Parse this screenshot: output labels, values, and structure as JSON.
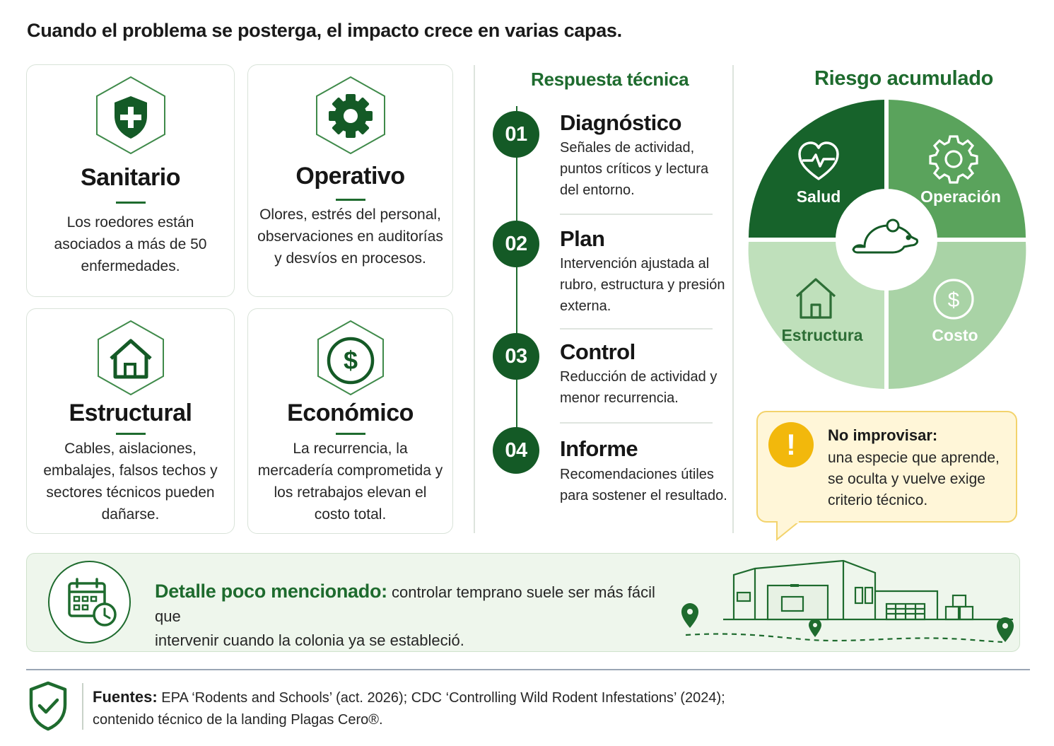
{
  "headline": "Cuando el problema se posterga, el impacto crece en varias capas.",
  "impacts": [
    {
      "title": "Sanitario",
      "icon": "shield-plus-icon",
      "desc": "Los roedores están asociados a más de 50 enfermedades."
    },
    {
      "title": "Operativo",
      "icon": "gear-icon",
      "desc": "Olores, estrés del personal, observaciones en auditorías y desvíos en procesos."
    },
    {
      "title": "Estructural",
      "icon": "house-icon",
      "desc": "Cables, aislaciones, embalajes, falsos techos y sectores técnicos pueden dañarse."
    },
    {
      "title": "Económico",
      "icon": "dollar-coin-icon",
      "desc": "La recurrencia, la mercadería comprometida y los retrabajos elevan el costo total."
    }
  ],
  "response": {
    "title": "Respuesta técnica",
    "steps": [
      {
        "num": "01",
        "title": "Diagnóstico",
        "desc": "Señales de actividad, puntos críticos y lectura del entorno."
      },
      {
        "num": "02",
        "title": "Plan",
        "desc": "Intervención ajustada al rubro, estructura y presión externa."
      },
      {
        "num": "03",
        "title": "Control",
        "desc": "Reducción de actividad y menor recurrencia."
      },
      {
        "num": "04",
        "title": "Informe",
        "desc": "Recomendaciones útiles para sostener el resultado."
      }
    ]
  },
  "risk": {
    "title": "Riesgo acumulado",
    "center_icon": "rodent-icon",
    "segments": [
      {
        "label": "Salud",
        "icon": "heart-pulse-icon",
        "color": "#17632b"
      },
      {
        "label": "Operación",
        "icon": "gear-icon",
        "color": "#5aa35c"
      },
      {
        "label": "Estructura",
        "icon": "house-icon",
        "color": "#bfe0bb"
      },
      {
        "label": "Costo",
        "icon": "dollar-coin-icon",
        "color": "#a9d3a6"
      }
    ]
  },
  "callout": {
    "icon": "exclamation-icon",
    "title": "No improvisar:",
    "text": "una especie que aprende, se oculta y vuelve exige criterio técnico."
  },
  "banner": {
    "icon": "calendar-clock-icon",
    "lead": "Detalle poco mencionado:",
    "text_1": " controlar temprano suele ser más fácil que",
    "text_2": "intervenir cuando la colonia ya se estableció."
  },
  "sources": {
    "icon": "shield-check-icon",
    "lead": "Fuentes:",
    "text_1": " EPA ‘Rodents and Schools’ (act. 2026); CDC ‘Controlling Wild Rodent Infestations’ (2024);",
    "text_2": "contenido técnico de la landing Plagas Cero®."
  },
  "colors": {
    "brand_dark": "#145a26",
    "brand": "#1e6b2e",
    "callout_bg": "#fff6d8",
    "callout_border": "#f3d36c",
    "warning": "#f2b80c",
    "banner_bg": "#eef6ec"
  }
}
